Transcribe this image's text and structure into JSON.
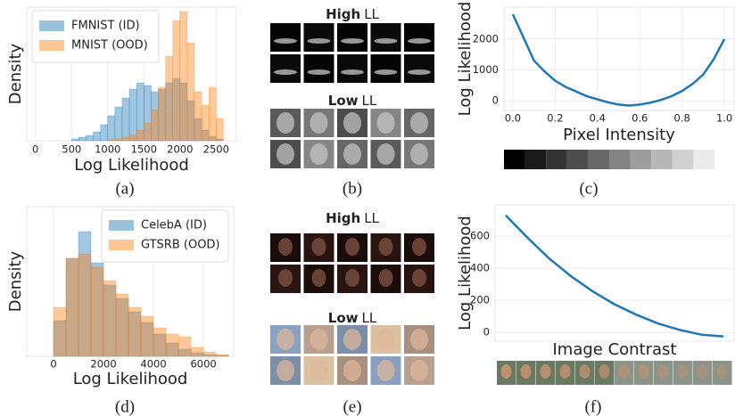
{
  "chart_data": [
    {
      "type": "histogram",
      "caption": "(a)",
      "xlabel": "Log Likelihood",
      "ylabel": "Density",
      "bins": [
        500,
        600,
        700,
        800,
        900,
        1000,
        1100,
        1200,
        1300,
        1400,
        1500,
        1600,
        1700,
        1800,
        1900,
        2000,
        2100,
        2200,
        2300,
        2400,
        2500,
        2600
      ],
      "series": [
        {
          "name": "FMNIST (ID)",
          "color": "#1f77b4",
          "values": [
            2,
            4,
            6,
            10,
            18,
            28,
            38,
            48,
            58,
            65,
            62,
            55,
            58,
            65,
            70,
            65,
            45,
            25,
            12,
            5,
            2
          ]
        },
        {
          "name": "MNIST (OOD)",
          "color": "#ff7f0e",
          "values": [
            0,
            0,
            0,
            0,
            0,
            1,
            2,
            4,
            7,
            12,
            20,
            35,
            60,
            95,
            135,
            145,
            110,
            55,
            40,
            60,
            25
          ]
        }
      ],
      "xlim": [
        -120,
        2780
      ],
      "xticks": [
        0,
        500,
        1000,
        1500,
        2000,
        2500
      ],
      "ylim": [
        0,
        150
      ],
      "grid": true,
      "legend": "upper left"
    },
    {
      "type": "line",
      "caption": "(c)",
      "xlabel": "Pixel Intensity",
      "ylabel": "Log Likelihood",
      "x": [
        0,
        0.05,
        0.1,
        0.15,
        0.2,
        0.25,
        0.3,
        0.35,
        0.4,
        0.45,
        0.5,
        0.55,
        0.6,
        0.65,
        0.7,
        0.75,
        0.8,
        0.85,
        0.9,
        0.95,
        1
      ],
      "series": [
        {
          "color": "#1f77b4",
          "values": [
            2800,
            2050,
            1300,
            950,
            650,
            450,
            300,
            150,
            50,
            -50,
            -120,
            -150,
            -120,
            -60,
            30,
            150,
            320,
            550,
            850,
            1350,
            2000
          ]
        }
      ],
      "xlim": [
        -0.042,
        1.046
      ],
      "xticks": [
        {
          "value": 0,
          "label": "0.0"
        },
        0.2,
        0.4,
        0.6,
        0.8,
        {
          "value": 1,
          "label": "1.0"
        }
      ],
      "ylim": [
        -310,
        3030
      ],
      "yticks": [
        0,
        1000,
        2000
      ],
      "grid": true
    },
    {
      "type": "histogram",
      "caption": "(d)",
      "xlabel": "Log Likelihood",
      "ylabel": "Density",
      "bins": [
        0,
        500,
        1000,
        1500,
        2000,
        2500,
        3000,
        3500,
        4000,
        4500,
        5000,
        5500,
        6000,
        6500,
        7000
      ],
      "series": [
        {
          "name": "CelebA (ID)",
          "color": "#1f77b4",
          "values": [
            40,
            110,
            140,
            105,
            80,
            65,
            50,
            38,
            25,
            15,
            8,
            4,
            2,
            1
          ]
        },
        {
          "name": "GTSRB (OOD)",
          "color": "#ff7f0e",
          "values": [
            55,
            110,
            115,
            100,
            85,
            70,
            55,
            45,
            32,
            25,
            22,
            10,
            5,
            2
          ]
        }
      ],
      "xlim": [
        -1070,
        7210
      ],
      "xticks": [
        0,
        2000,
        4000,
        6000
      ],
      "ylim": [
        0,
        168
      ],
      "grid": true,
      "legend": "upper right"
    },
    {
      "type": "line",
      "caption": "(f)",
      "xlabel": "Image Contrast",
      "ylabel": "Log Likelihood",
      "series": [
        {
          "color": "#1f77b4",
          "values": [
            730,
            590,
            460,
            350,
            255,
            175,
            110,
            55,
            15,
            -15,
            -25
          ]
        }
      ],
      "ylim": [
        -55,
        795
      ],
      "yticks": [
        0,
        200,
        400,
        600
      ],
      "grid": true
    }
  ],
  "image_panels": [
    {
      "caption": "(b)",
      "high": {
        "bold": "High",
        "rest": "LL"
      },
      "low": {
        "bold": "Low",
        "rest": "LL"
      }
    },
    {
      "caption": "(e)",
      "high": {
        "bold": "High",
        "rest": "LL"
      },
      "low": {
        "bold": "Low",
        "rest": "LL"
      }
    }
  ]
}
